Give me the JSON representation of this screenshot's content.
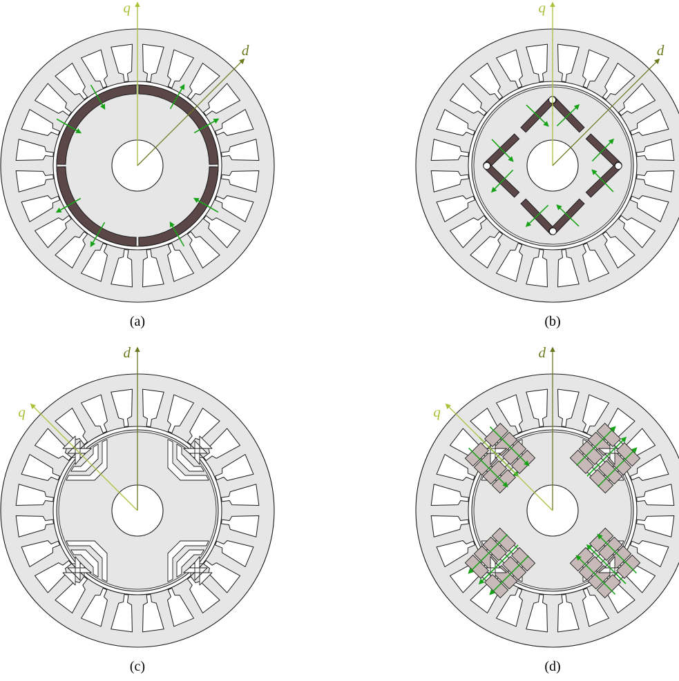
{
  "panels": [
    {
      "id": "a",
      "caption": "(a)",
      "variant": "surface-pm",
      "axes": [
        {
          "label": "q",
          "angle_deg": 90,
          "color": "#a8c23a"
        },
        {
          "label": "d",
          "angle_deg": 45,
          "color": "#6b7a1f"
        }
      ]
    },
    {
      "id": "b",
      "caption": "(b)",
      "variant": "interior-pm",
      "axes": [
        {
          "label": "q",
          "angle_deg": 90,
          "color": "#a8c23a"
        },
        {
          "label": "d",
          "angle_deg": 45,
          "color": "#6b7a1f"
        }
      ]
    },
    {
      "id": "c",
      "caption": "(c)",
      "variant": "synchronous-reluctance",
      "axes": [
        {
          "label": "d",
          "angle_deg": 90,
          "color": "#6b7a1f"
        },
        {
          "label": "q",
          "angle_deg": 135,
          "color": "#a8c23a"
        }
      ]
    },
    {
      "id": "d",
      "caption": "(d)",
      "variant": "pm-assisted-reluctance",
      "axes": [
        {
          "label": "d",
          "angle_deg": 90,
          "color": "#6b7a1f"
        },
        {
          "label": "q",
          "angle_deg": 135,
          "color": "#a8c23a"
        }
      ]
    }
  ],
  "stator": {
    "slots": 24
  },
  "colors": {
    "stator_fill": "#e6e6e6",
    "rotor_fill": "#e6e6e6",
    "outline": "#1a1a1a",
    "magnet_dark": "#5b4747",
    "magnet_light": "#c8b9b9",
    "magnetization_arrow": "#17a317"
  }
}
